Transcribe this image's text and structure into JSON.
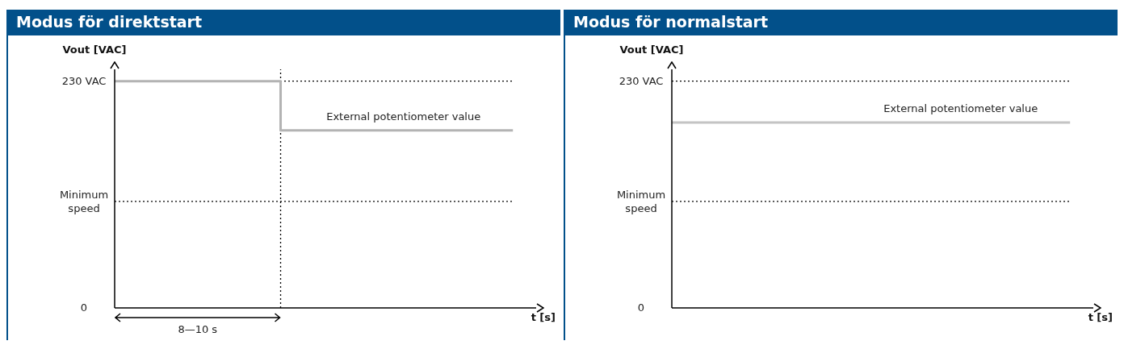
{
  "chart_data": [
    {
      "type": "step",
      "title": "Modus för direktstart",
      "ylabel": "Vout [VAC]",
      "xlabel": "t [s]",
      "categories": [
        null,
        null,
        null,
        null,
        null,
        null,
        null,
        null,
        null,
        null,
        null,
        null,
        null
      ],
      "series": [
        {
          "color": "#b3b3b3",
          "values": [
            230,
            230,
            230,
            230,
            230,
            180,
            180,
            180,
            180,
            180,
            180,
            180,
            180
          ]
        }
      ],
      "ylim": [
        0,
        242
      ],
      "yticks": [
        {
          "value": 0,
          "label": "0"
        },
        {
          "value": 108,
          "label": "Minimum speed"
        },
        {
          "value": 230,
          "label": "230 VAC"
        }
      ],
      "ref_lines": [
        {
          "axis": "y",
          "value": 230,
          "line_style": "dotted",
          "color": "#000000"
        },
        {
          "axis": "y",
          "value": 108,
          "line_style": "dotted",
          "color": "#000000"
        }
      ],
      "annotations": [
        {
          "text": "External potentiometer value",
          "y": 180
        },
        "8—10 s"
      ]
    },
    {
      "type": "line",
      "title": "Modus för normalstart",
      "ylabel": "Vout [VAC]",
      "xlabel": "t [s]",
      "categories": [
        null,
        null,
        null,
        null,
        null,
        null,
        null,
        null,
        null,
        null,
        null,
        null,
        null
      ],
      "series": [
        {
          "color": "#c4c4c4",
          "values": [
            188,
            188,
            188,
            188,
            188,
            188,
            188,
            188,
            188,
            188,
            188,
            188,
            188
          ]
        }
      ],
      "ylim": [
        0,
        242
      ],
      "yticks": [
        {
          "value": 0,
          "label": "0"
        },
        {
          "value": 108,
          "label": "Minimum speed"
        },
        {
          "value": 230,
          "label": "230 VAC"
        }
      ],
      "ref_lines": [
        {
          "axis": "y",
          "value": 230,
          "line_style": "dotted",
          "color": "#000000"
        },
        {
          "axis": "y",
          "value": 108,
          "line_style": "dotted",
          "color": "#000000"
        }
      ],
      "annotations": [
        {
          "text": "External potentiometer value",
          "y": 188
        }
      ]
    }
  ]
}
